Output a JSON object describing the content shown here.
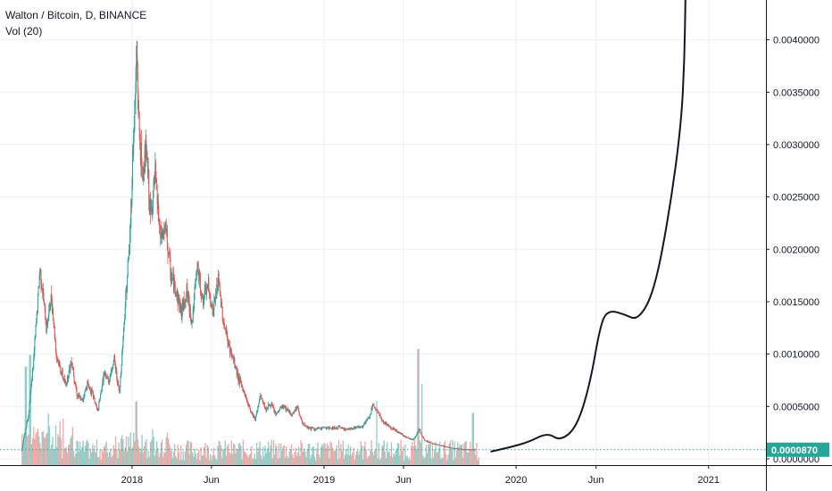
{
  "legend": {
    "title": "Walton / Bitcoin, D, BINANCE",
    "volume_label": "Vol (20)"
  },
  "colors": {
    "up": "#26a69a",
    "down": "#ef5350",
    "vol_up": "#8fcdc6",
    "vol_down": "#f3a7a5",
    "grid": "#eef0f3",
    "axis": "#131722",
    "drawing": "#131722",
    "last_price": "#26a69a"
  },
  "chart_data": {
    "type": "line",
    "title": "Walton / Bitcoin, D, BINANCE",
    "xlabel": "",
    "ylabel": "",
    "x_ticks": [
      "2018",
      "Jun",
      "2019",
      "Jun",
      "2020",
      "Jun",
      "2021"
    ],
    "y_ticks": [
      "0.0000000",
      "0.0005000",
      "0.0010000",
      "0.0015000",
      "0.0020000",
      "0.0025000",
      "0.0030000",
      "0.0035000",
      "0.0040000"
    ],
    "ylim": [
      -6e-05,
      0.00438
    ],
    "xlim": [
      "2017-04-25",
      "2021-04-20"
    ],
    "last_price_label": "0.0000870",
    "last_price": 8.7e-05,
    "series": [
      {
        "kind": "price",
        "points": [
          [
            "2017-06-05",
            8e-05
          ],
          [
            "2017-06-10",
            0.00022
          ],
          [
            "2017-06-18",
            0.00042
          ],
          [
            "2017-06-28",
            0.00095
          ],
          [
            "2017-07-05",
            0.00145
          ],
          [
            "2017-07-10",
            0.00182
          ],
          [
            "2017-07-14",
            0.00165
          ],
          [
            "2017-07-22",
            0.00125
          ],
          [
            "2017-08-01",
            0.00155
          ],
          [
            "2017-08-10",
            0.001
          ],
          [
            "2017-08-18",
            0.00085
          ],
          [
            "2017-08-28",
            0.0007
          ],
          [
            "2017-09-08",
            0.00095
          ],
          [
            "2017-09-18",
            0.00062
          ],
          [
            "2017-09-28",
            0.00055
          ],
          [
            "2017-10-08",
            0.00072
          ],
          [
            "2017-10-18",
            0.00062
          ],
          [
            "2017-10-28",
            0.00045
          ],
          [
            "2017-11-08",
            0.0008
          ],
          [
            "2017-11-18",
            0.00075
          ],
          [
            "2017-11-28",
            0.00095
          ],
          [
            "2017-12-08",
            0.00062
          ],
          [
            "2017-12-20",
            0.00155
          ],
          [
            "2017-12-28",
            0.0021
          ],
          [
            "2018-01-03",
            0.003
          ],
          [
            "2018-01-07",
            0.00345
          ],
          [
            "2018-01-10",
            0.00385
          ],
          [
            "2018-01-14",
            0.0032
          ],
          [
            "2018-01-20",
            0.0027
          ],
          [
            "2018-01-28",
            0.00295
          ],
          [
            "2018-02-05",
            0.0023
          ],
          [
            "2018-02-14",
            0.0027
          ],
          [
            "2018-02-24",
            0.0021
          ],
          [
            "2018-03-06",
            0.0022
          ],
          [
            "2018-03-16",
            0.00175
          ],
          [
            "2018-03-26",
            0.0016
          ],
          [
            "2018-04-05",
            0.0014
          ],
          [
            "2018-04-15",
            0.0016
          ],
          [
            "2018-04-25",
            0.0013
          ],
          [
            "2018-05-05",
            0.00185
          ],
          [
            "2018-05-15",
            0.0015
          ],
          [
            "2018-05-25",
            0.00165
          ],
          [
            "2018-06-04",
            0.0014
          ],
          [
            "2018-06-14",
            0.0017
          ],
          [
            "2018-06-24",
            0.0013
          ],
          [
            "2018-07-04",
            0.00108
          ],
          [
            "2018-07-14",
            0.00092
          ],
          [
            "2018-07-24",
            0.00075
          ],
          [
            "2018-08-03",
            0.00062
          ],
          [
            "2018-08-13",
            0.00048
          ],
          [
            "2018-08-23",
            0.00038
          ],
          [
            "2018-09-02",
            0.0006
          ],
          [
            "2018-09-12",
            0.00048
          ],
          [
            "2018-09-22",
            0.00052
          ],
          [
            "2018-10-02",
            0.00042
          ],
          [
            "2018-10-12",
            0.0005
          ],
          [
            "2018-10-22",
            0.00048
          ],
          [
            "2018-11-01",
            0.00042
          ],
          [
            "2018-11-11",
            0.0005
          ],
          [
            "2018-11-21",
            0.00033
          ],
          [
            "2018-12-01",
            0.0003
          ],
          [
            "2018-12-15",
            0.00028
          ],
          [
            "2019-01-01",
            0.0003
          ],
          [
            "2019-01-15",
            0.00029
          ],
          [
            "2019-02-01",
            0.0003
          ],
          [
            "2019-02-15",
            0.00028
          ],
          [
            "2019-03-01",
            0.0003
          ],
          [
            "2019-03-15",
            0.00031
          ],
          [
            "2019-03-28",
            0.0004
          ],
          [
            "2019-04-05",
            0.00052
          ],
          [
            "2019-04-12",
            0.00046
          ],
          [
            "2019-04-22",
            0.00036
          ],
          [
            "2019-05-02",
            0.00032
          ],
          [
            "2019-05-15",
            0.00028
          ],
          [
            "2019-06-01",
            0.00022
          ],
          [
            "2019-06-20",
            0.00018
          ],
          [
            "2019-07-01",
            0.00028
          ],
          [
            "2019-07-10",
            0.00018
          ],
          [
            "2019-07-25",
            0.00015
          ],
          [
            "2019-08-15",
            0.00012
          ],
          [
            "2019-09-05",
            0.0001
          ],
          [
            "2019-09-25",
            9e-05
          ],
          [
            "2019-10-15",
            8.7e-05
          ]
        ]
      },
      {
        "kind": "drawing",
        "points": [
          [
            "2019-11-15",
            7e-05
          ],
          [
            "2019-12-20",
            0.00011
          ],
          [
            "2020-01-25",
            0.00016
          ],
          [
            "2020-03-01",
            0.00025
          ],
          [
            "2020-03-25",
            0.00017
          ],
          [
            "2020-04-25",
            0.0003
          ],
          [
            "2020-05-20",
            0.0007
          ],
          [
            "2020-06-10",
            0.0013
          ],
          [
            "2020-06-25",
            0.00142
          ],
          [
            "2020-07-25",
            0.00138
          ],
          [
            "2020-08-20",
            0.00132
          ],
          [
            "2020-09-20",
            0.0016
          ],
          [
            "2020-10-20",
            0.0024
          ],
          [
            "2020-11-10",
            0.0032
          ],
          [
            "2020-11-16",
            0.0038
          ],
          [
            "2020-11-18",
            0.0044
          ]
        ]
      }
    ],
    "volume": {
      "label": "Vol (20)",
      "start": "2017-06-05",
      "end": "2019-10-22",
      "spikes": [
        [
          "2017-06-12",
          0.85
        ],
        [
          "2017-06-20",
          0.95
        ],
        [
          "2018-01-08",
          0.55
        ],
        [
          "2019-04-10",
          0.55
        ],
        [
          "2019-06-28",
          1.0
        ],
        [
          "2019-07-05",
          0.7
        ],
        [
          "2019-10-10",
          0.45
        ]
      ]
    }
  }
}
